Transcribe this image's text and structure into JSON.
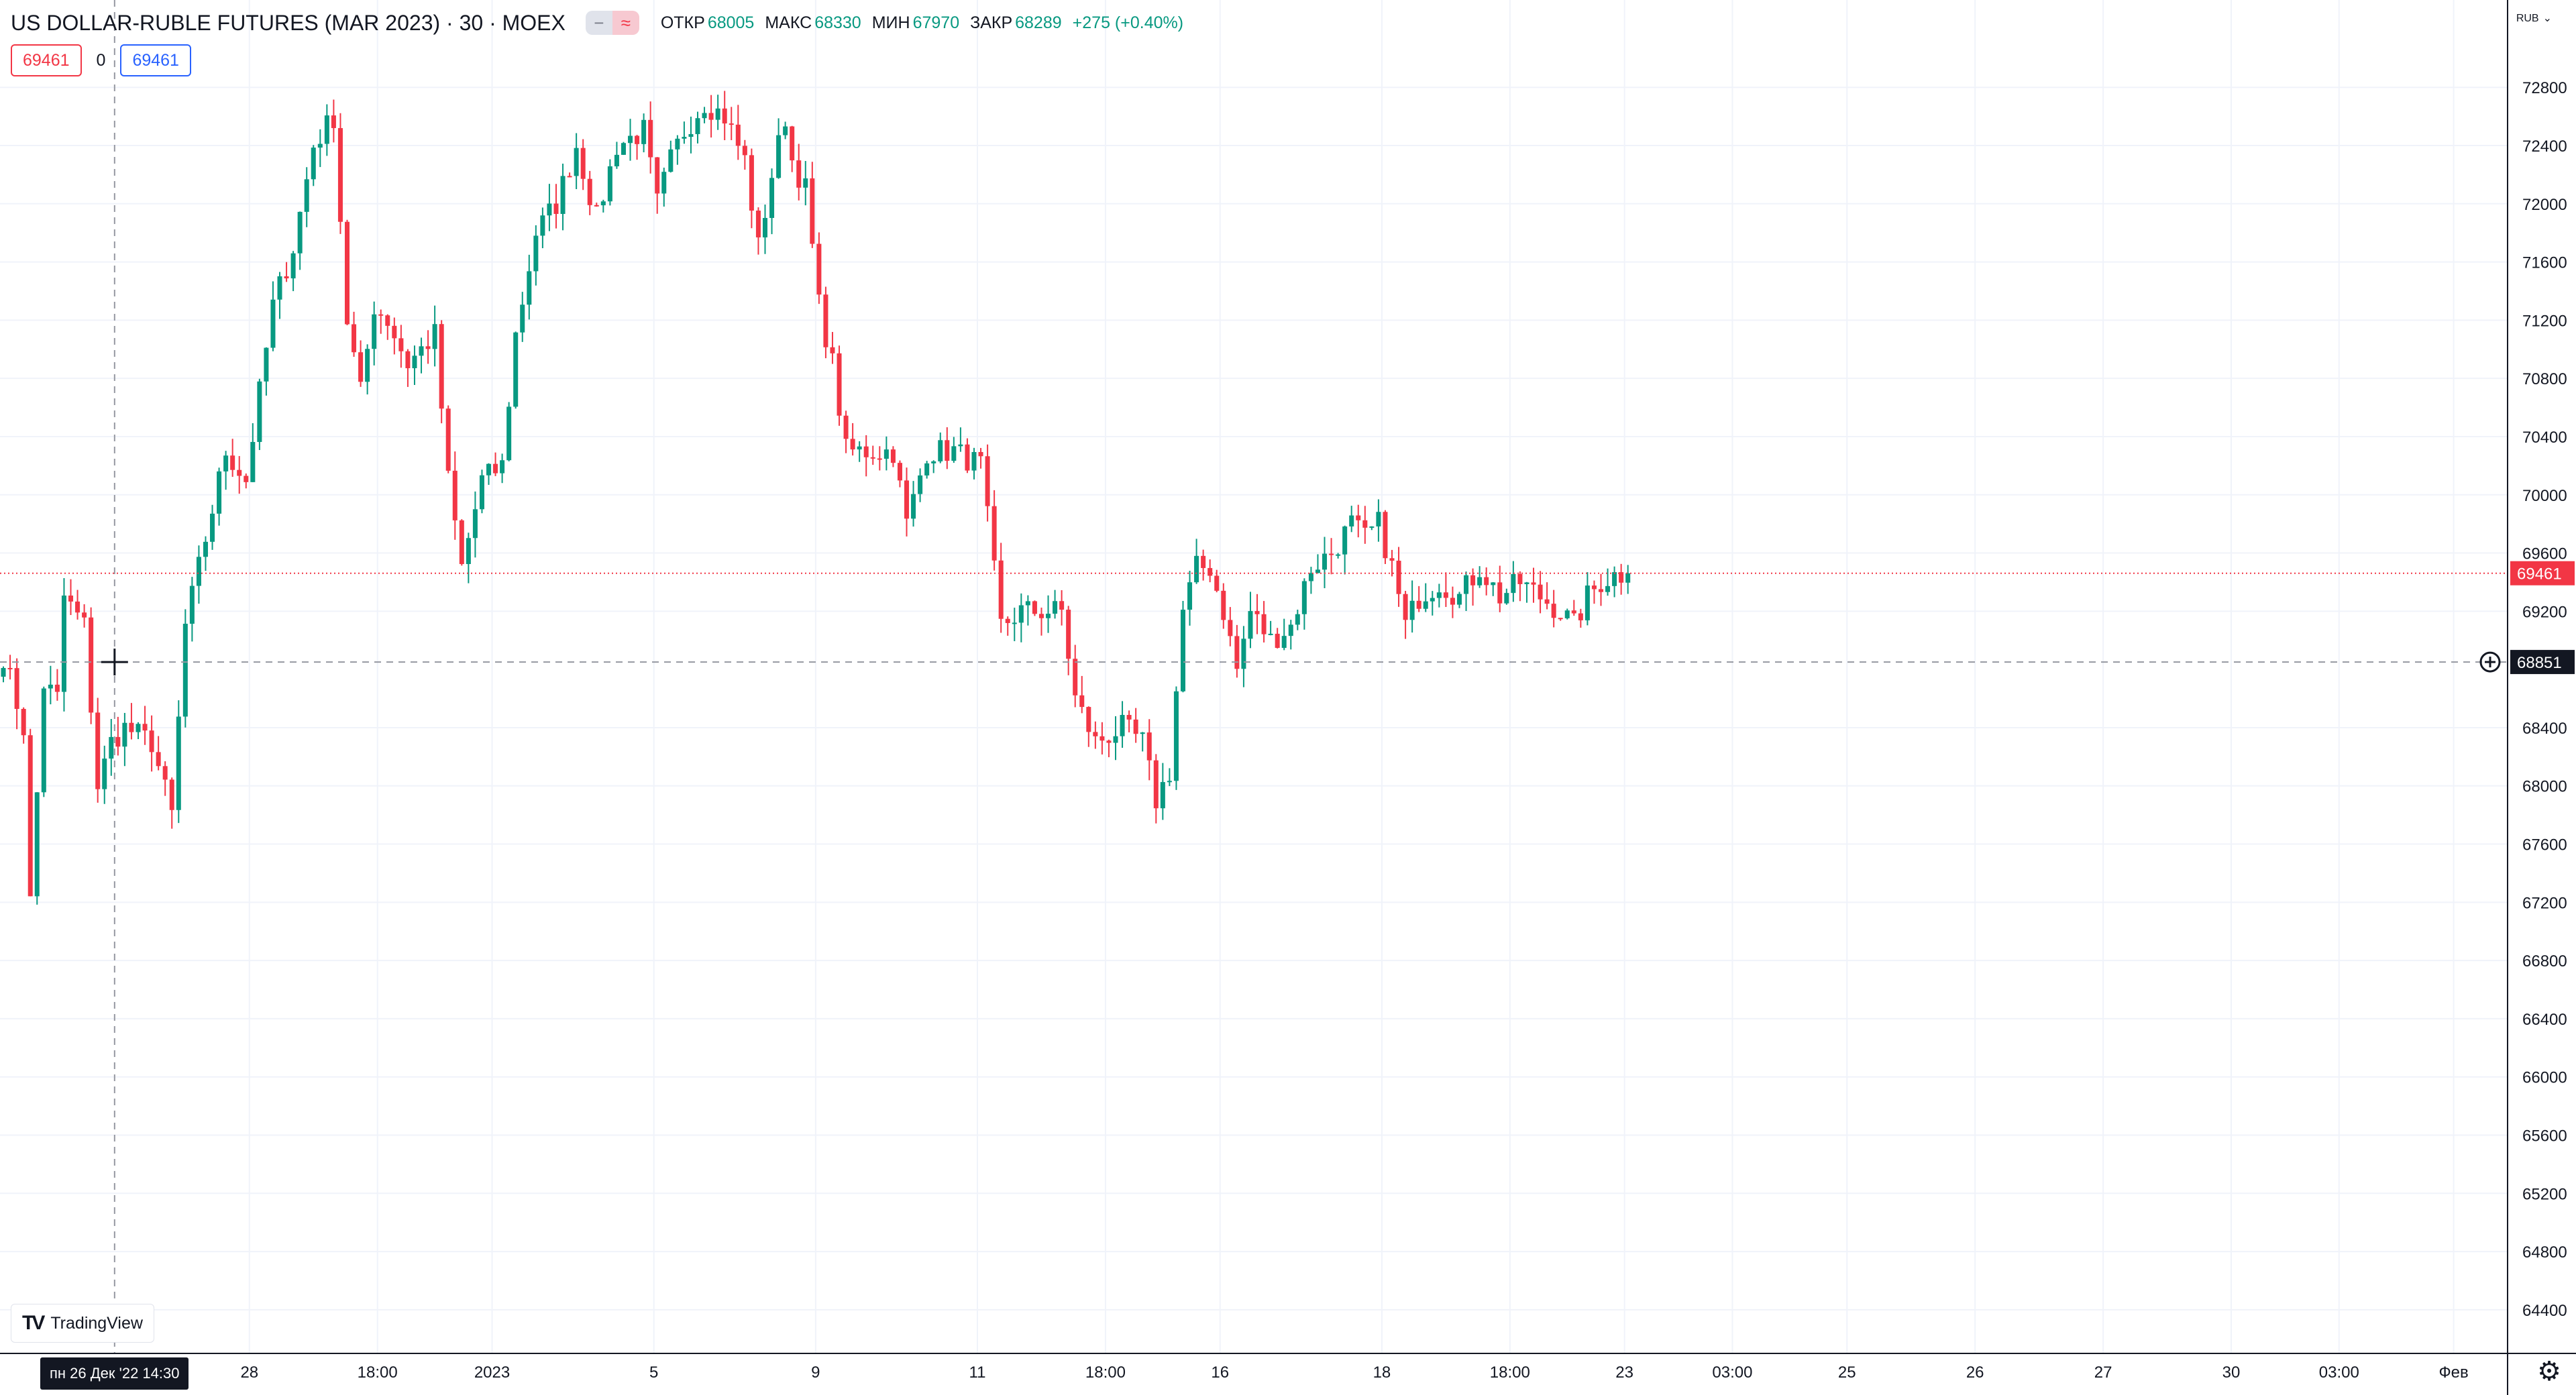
{
  "legend": {
    "title": "US DOLLAR-RUBLE FUTURES (MAR 2023) · 30 · MOEX",
    "chip_a": "−",
    "chip_b": "≈",
    "open_label": "ОТКР",
    "open": "68005",
    "high_label": "МАКС",
    "high": "68330",
    "low_label": "МИН",
    "low": "67970",
    "close_label": "ЗАКР",
    "close": "68289",
    "change": "+275 (+0.40%)"
  },
  "order": {
    "sell": "69461",
    "spread": "0",
    "buy": "69461"
  },
  "currency": "RUB",
  "brand": "TradingView",
  "crosshair_time": "пн 26 Дек '22   14:30",
  "last_price_label": "69461",
  "crosshair_price_label": "68851",
  "colors": {
    "up": "#089981",
    "down": "#f23645",
    "grid": "#f0f3fa",
    "axis_text": "#131722"
  },
  "chart_data": {
    "type": "candlestick",
    "title": "US DOLLAR-RUBLE FUTURES (MAR 2023) · 30 · MOEX",
    "currency": "RUB",
    "ylim": [
      64100,
      73400
    ],
    "y_ticks": [
      72800,
      72400,
      72000,
      71600,
      71200,
      70800,
      70400,
      70000,
      69600,
      69200,
      68400,
      68000,
      67600,
      67200,
      66800,
      66400,
      66000,
      65600,
      65200,
      64800,
      64400
    ],
    "x_ticks": [
      {
        "label": "28",
        "idx": 37
      },
      {
        "label": "18:00",
        "idx": 56
      },
      {
        "label": "2023",
        "idx": 73
      },
      {
        "label": "5",
        "idx": 97
      },
      {
        "label": "9",
        "idx": 121
      },
      {
        "label": "11",
        "idx": 145
      },
      {
        "label": "18:00",
        "idx": 164
      },
      {
        "label": "16",
        "idx": 181
      },
      {
        "label": "18",
        "idx": 205
      },
      {
        "label": "18:00",
        "idx": 224
      },
      {
        "label": "23",
        "idx": 241
      },
      {
        "label": "03:00",
        "idx": 257
      },
      {
        "label": "25",
        "idx": 274
      },
      {
        "label": "26",
        "idx": 293
      },
      {
        "label": "27",
        "idx": 312
      },
      {
        "label": "30",
        "idx": 331
      },
      {
        "label": "03:00",
        "idx": 347
      },
      {
        "label": "Фев",
        "idx": 364
      }
    ],
    "x_range": [
      0,
      372
    ],
    "last_price": 69461,
    "crosshair": {
      "idx": 17,
      "price": 68851
    },
    "waypoints": [
      [
        0,
        68900
      ],
      [
        3,
        68400
      ],
      [
        4,
        67200
      ],
      [
        6,
        68700
      ],
      [
        8,
        68600
      ],
      [
        9,
        69300
      ],
      [
        12,
        69100
      ],
      [
        14,
        68000
      ],
      [
        16,
        68300
      ],
      [
        18,
        68400
      ],
      [
        22,
        68300
      ],
      [
        25,
        67800
      ],
      [
        27,
        69100
      ],
      [
        30,
        69700
      ],
      [
        33,
        70300
      ],
      [
        36,
        70100
      ],
      [
        40,
        71300
      ],
      [
        43,
        71700
      ],
      [
        46,
        72400
      ],
      [
        49,
        72600
      ],
      [
        51,
        71200
      ],
      [
        53,
        70700
      ],
      [
        55,
        71300
      ],
      [
        57,
        71200
      ],
      [
        60,
        70900
      ],
      [
        64,
        71100
      ],
      [
        66,
        70100
      ],
      [
        68,
        69500
      ],
      [
        71,
        70100
      ],
      [
        74,
        70200
      ],
      [
        76,
        71100
      ],
      [
        79,
        71800
      ],
      [
        82,
        72000
      ],
      [
        85,
        72400
      ],
      [
        88,
        71900
      ],
      [
        91,
        72400
      ],
      [
        95,
        72500
      ],
      [
        97,
        72000
      ],
      [
        99,
        72300
      ],
      [
        101,
        72500
      ],
      [
        104,
        72700
      ],
      [
        107,
        72600
      ],
      [
        110,
        72300
      ],
      [
        112,
        71700
      ],
      [
        114,
        72200
      ],
      [
        116,
        72600
      ],
      [
        117,
        72300
      ],
      [
        119,
        72100
      ],
      [
        121,
        71300
      ],
      [
        123,
        70900
      ],
      [
        125,
        70300
      ],
      [
        128,
        70300
      ],
      [
        132,
        70300
      ],
      [
        134,
        69800
      ],
      [
        137,
        70300
      ],
      [
        141,
        70300
      ],
      [
        145,
        70200
      ],
      [
        148,
        69100
      ],
      [
        151,
        69200
      ],
      [
        154,
        69200
      ],
      [
        157,
        69200
      ],
      [
        159,
        68600
      ],
      [
        162,
        68300
      ],
      [
        166,
        68400
      ],
      [
        169,
        68300
      ],
      [
        171,
        67900
      ],
      [
        173,
        68100
      ],
      [
        175,
        69200
      ],
      [
        177,
        69500
      ],
      [
        179,
        69500
      ],
      [
        181,
        69200
      ],
      [
        183,
        68800
      ],
      [
        185,
        69200
      ],
      [
        188,
        69000
      ],
      [
        191,
        69100
      ],
      [
        194,
        69500
      ],
      [
        197,
        69600
      ],
      [
        200,
        69800
      ],
      [
        202,
        69700
      ],
      [
        204,
        69800
      ],
      [
        206,
        69500
      ],
      [
        208,
        69100
      ],
      [
        210,
        69300
      ],
      [
        213,
        69400
      ],
      [
        216,
        69300
      ],
      [
        219,
        69500
      ],
      [
        222,
        69300
      ],
      [
        225,
        69400
      ],
      [
        228,
        69300
      ],
      [
        231,
        69200
      ],
      [
        233,
        69100
      ],
      [
        235,
        69300
      ],
      [
        237,
        69400
      ],
      [
        239,
        69450
      ],
      [
        241,
        69461
      ]
    ]
  }
}
